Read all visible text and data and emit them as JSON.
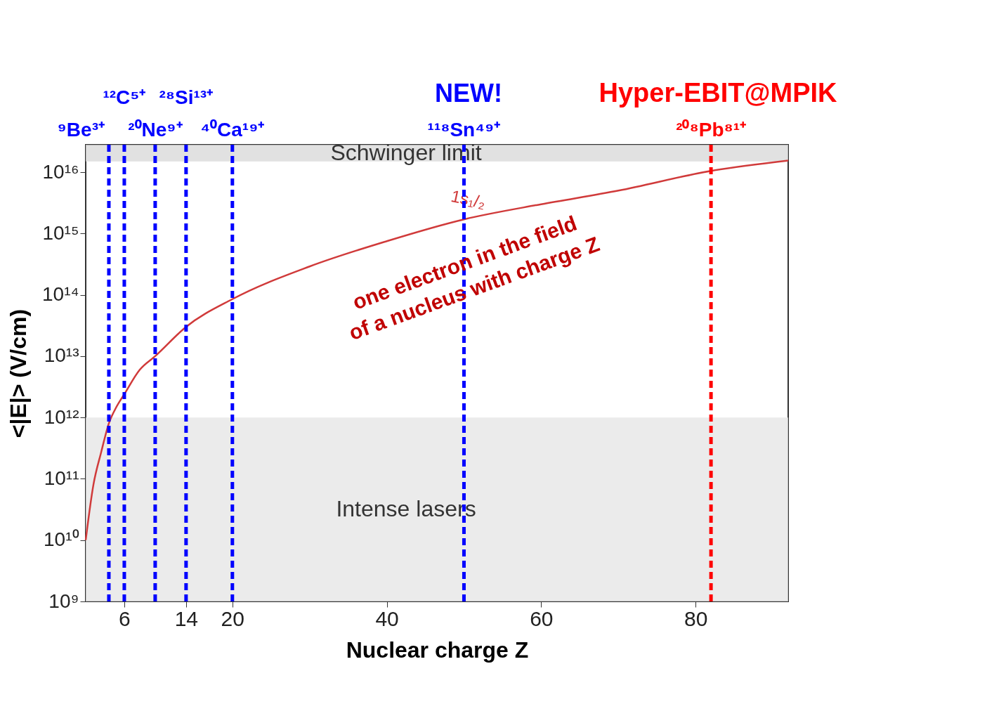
{
  "chart_data": {
    "type": "line",
    "xlabel": "Nuclear charge Z",
    "ylabel": "<|E|> (V/cm)",
    "x": [
      1,
      2,
      3,
      4,
      5,
      6,
      8,
      10,
      14,
      20,
      30,
      40,
      50,
      60,
      70,
      82,
      92
    ],
    "series": [
      {
        "name": "1s₁/₂",
        "color": "#d03a3a",
        "values": [
          10000000000.0,
          80000000000.0,
          270000000000.0,
          800000000000.0,
          1500000000000.0,
          2400000000000.0,
          6000000000000.0,
          10000000000000.0,
          30000000000000.0,
          85000000000000.0,
          290000000000000.0,
          750000000000000.0,
          1700000000000000.0,
          3000000000000000.0,
          5000000000000000.0,
          1.05e+16,
          1.55e+16
        ]
      }
    ],
    "log": "y",
    "xlim": [
      1,
      92
    ],
    "ylim": [
      1000000000.0,
      2.8e+16
    ],
    "xticks": [
      6,
      14,
      20,
      40,
      60,
      80
    ],
    "yticks": [
      {
        "value": 1000000000.0,
        "label": "10⁹"
      },
      {
        "value": 10000000000.0,
        "label": "10¹⁰"
      },
      {
        "value": 100000000000.0,
        "label": "10¹¹"
      },
      {
        "value": 1000000000000.0,
        "label": "10¹²"
      },
      {
        "value": 10000000000000.0,
        "label": "10¹³"
      },
      {
        "value": 100000000000000.0,
        "label": "10¹⁴"
      },
      {
        "value": 1000000000000000.0,
        "label": "10¹⁵"
      },
      {
        "value": 1e+16,
        "label": "10¹⁶"
      }
    ],
    "grid": false,
    "marker": "none",
    "line_style": "solid",
    "ref_lines": [
      {
        "axis": "x",
        "value": 4,
        "label": "⁹Be³⁺",
        "color": "#0000ff",
        "line_style": "dashed"
      },
      {
        "axis": "x",
        "value": 6,
        "label": "¹²C⁵⁺",
        "color": "#0000ff",
        "line_style": "dashed"
      },
      {
        "axis": "x",
        "value": 10,
        "label": "²⁰Ne⁹⁺",
        "color": "#0000ff",
        "line_style": "dashed"
      },
      {
        "axis": "x",
        "value": 14,
        "label": "²⁸Si¹³⁺",
        "color": "#0000ff",
        "line_style": "dashed"
      },
      {
        "axis": "x",
        "value": 20,
        "label": "⁴⁰Ca¹⁹⁺",
        "color": "#0000ff",
        "line_style": "dashed"
      },
      {
        "axis": "x",
        "value": 50,
        "label": "¹¹⁸Sn⁴⁹⁺",
        "color": "#0000ff",
        "line_style": "dashed"
      },
      {
        "axis": "x",
        "value": 82,
        "label": "²⁰⁸Pb⁸¹⁺",
        "color": "#ff0000",
        "line_style": "dashed"
      }
    ],
    "bands": [
      {
        "axis": "y",
        "from": 1.5e+16,
        "to": 2.8e+16,
        "label": "Schwinger limit",
        "color": "#d9d9d9"
      },
      {
        "axis": "y",
        "from": 1000000000.0,
        "to": 1000000000000.0,
        "label": "Intense lasers",
        "color": "#e6e6e6"
      }
    ],
    "annotations": [
      "one electron in the field\nof a nucleus with charge Z",
      "NEW!",
      "Hyper-EBIT@MPIK"
    ]
  }
}
